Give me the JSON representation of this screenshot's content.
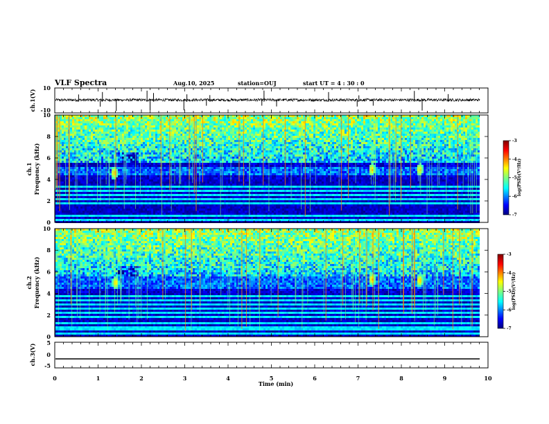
{
  "header": {
    "title": "VLF Spectra",
    "date": "Aug.10, 2025",
    "station": "station=OUJ",
    "start": "start  UT =   4 : 30 : 0"
  },
  "colors": {
    "frame": "#000000",
    "background": "#ffffff",
    "colormap": [
      "#00007f",
      "#0000ff",
      "#007fff",
      "#00ffff",
      "#7fff7f",
      "#ffff00",
      "#ff7f00",
      "#ff0000",
      "#7f0000"
    ]
  },
  "chart_data": [
    {
      "type": "line",
      "name": "ch1-waveform",
      "ylabel": "ch.1(V)",
      "ylim": [
        -10,
        10
      ],
      "yticks": [
        "10",
        "-10"
      ],
      "baseline_value": 0,
      "xlim": [
        0,
        10
      ],
      "bursts_min": [
        0.55,
        1.05,
        1.1,
        1.42,
        2.13,
        2.2,
        2.28,
        2.98,
        3.05,
        3.5,
        3.58,
        4.78,
        4.83,
        5.12,
        6.32,
        6.98,
        7.02,
        7.35,
        8.3,
        8.48,
        9.08
      ]
    },
    {
      "type": "heatmap",
      "name": "ch1-spectrogram",
      "ylabel_1": "ch.1",
      "ylabel_2": "Frequency (kHz)",
      "ylim": [
        0,
        10
      ],
      "yticks": [
        "0",
        "2",
        "4",
        "6",
        "8",
        "10"
      ],
      "xlim": [
        0,
        9.85
      ],
      "noise_band_khz": [
        4.4,
        5.2
      ],
      "hot_spots": [
        {
          "t_min": 1.35,
          "f_khz": 4.6
        },
        {
          "t_min": 7.3,
          "f_khz": 4.9
        },
        {
          "t_min": 8.4,
          "f_khz": 4.9
        }
      ],
      "colorbar": {
        "label": "log(PSD)(V²/Hz)",
        "ticks": [
          "-3",
          "-4",
          "-5",
          "-6",
          "-7"
        ],
        "range": [
          -7,
          -3
        ]
      }
    },
    {
      "type": "heatmap",
      "name": "ch2-spectrogram",
      "ylabel_1": "ch.2",
      "ylabel_2": "Frequency (kHz)",
      "ylim": [
        0,
        10
      ],
      "yticks": [
        "0",
        "2",
        "4",
        "6",
        "8",
        "10"
      ],
      "xlim": [
        0,
        9.85
      ],
      "noise_band_khz": [
        4.5,
        6.0
      ],
      "hot_spots": [
        {
          "t_min": 1.38,
          "f_khz": 5.0
        },
        {
          "t_min": 7.3,
          "f_khz": 5.3
        },
        {
          "t_min": 8.4,
          "f_khz": 5.2
        }
      ],
      "colorbar": {
        "label": "log(PSD)(V²/Hz)",
        "ticks": [
          "-3",
          "-4",
          "-5",
          "-6",
          "-7"
        ],
        "range": [
          -7,
          -3
        ]
      }
    },
    {
      "type": "line",
      "name": "ch3-voltage",
      "ylabel": "ch.3(V)",
      "ylim": [
        -5,
        5
      ],
      "yticks": [
        "5",
        "0",
        "-5"
      ],
      "value": -1.5,
      "xlim": [
        0,
        10
      ],
      "xlabel": "Time (min)",
      "xticks": [
        "0",
        "1",
        "2",
        "3",
        "4",
        "5",
        "6",
        "7",
        "8",
        "9",
        "10"
      ]
    }
  ]
}
